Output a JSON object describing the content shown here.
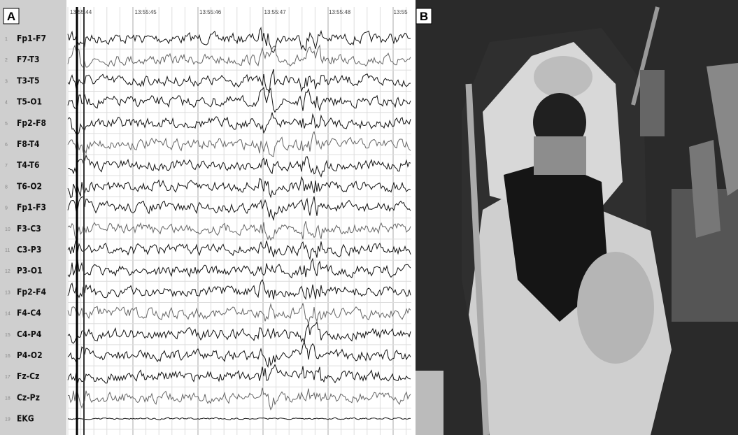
{
  "panels": [
    {
      "label": "A"
    },
    {
      "label": "B"
    }
  ],
  "timestamps": [
    "13:55:44",
    "13:55:45",
    "13:55:46",
    "13:55:47",
    "13:55:48",
    "13:55"
  ],
  "channels": [
    {
      "number": "1",
      "label": "Fp1-F7"
    },
    {
      "number": "2",
      "label": "F7-T3"
    },
    {
      "number": "3",
      "label": "T3-T5"
    },
    {
      "number": "4",
      "label": "T5-O1"
    },
    {
      "number": "5",
      "label": "Fp2-F8"
    },
    {
      "number": "6",
      "label": "F8-T4"
    },
    {
      "number": "7",
      "label": "T4-T6"
    },
    {
      "number": "8",
      "label": "T6-O2"
    },
    {
      "number": "9",
      "label": "Fp1-F3"
    },
    {
      "number": "10",
      "label": "F3-C3"
    },
    {
      "number": "11",
      "label": "C3-P3"
    },
    {
      "number": "12",
      "label": "P3-O1"
    },
    {
      "number": "13",
      "label": "Fp2-F4"
    },
    {
      "number": "14",
      "label": "F4-C4"
    },
    {
      "number": "15",
      "label": "C4-P4"
    },
    {
      "number": "16",
      "label": "P4-O2"
    },
    {
      "number": "17",
      "label": "Fz-Cz"
    },
    {
      "number": "18",
      "label": "Cz-Pz"
    },
    {
      "number": "19",
      "label": "EKG"
    }
  ]
}
